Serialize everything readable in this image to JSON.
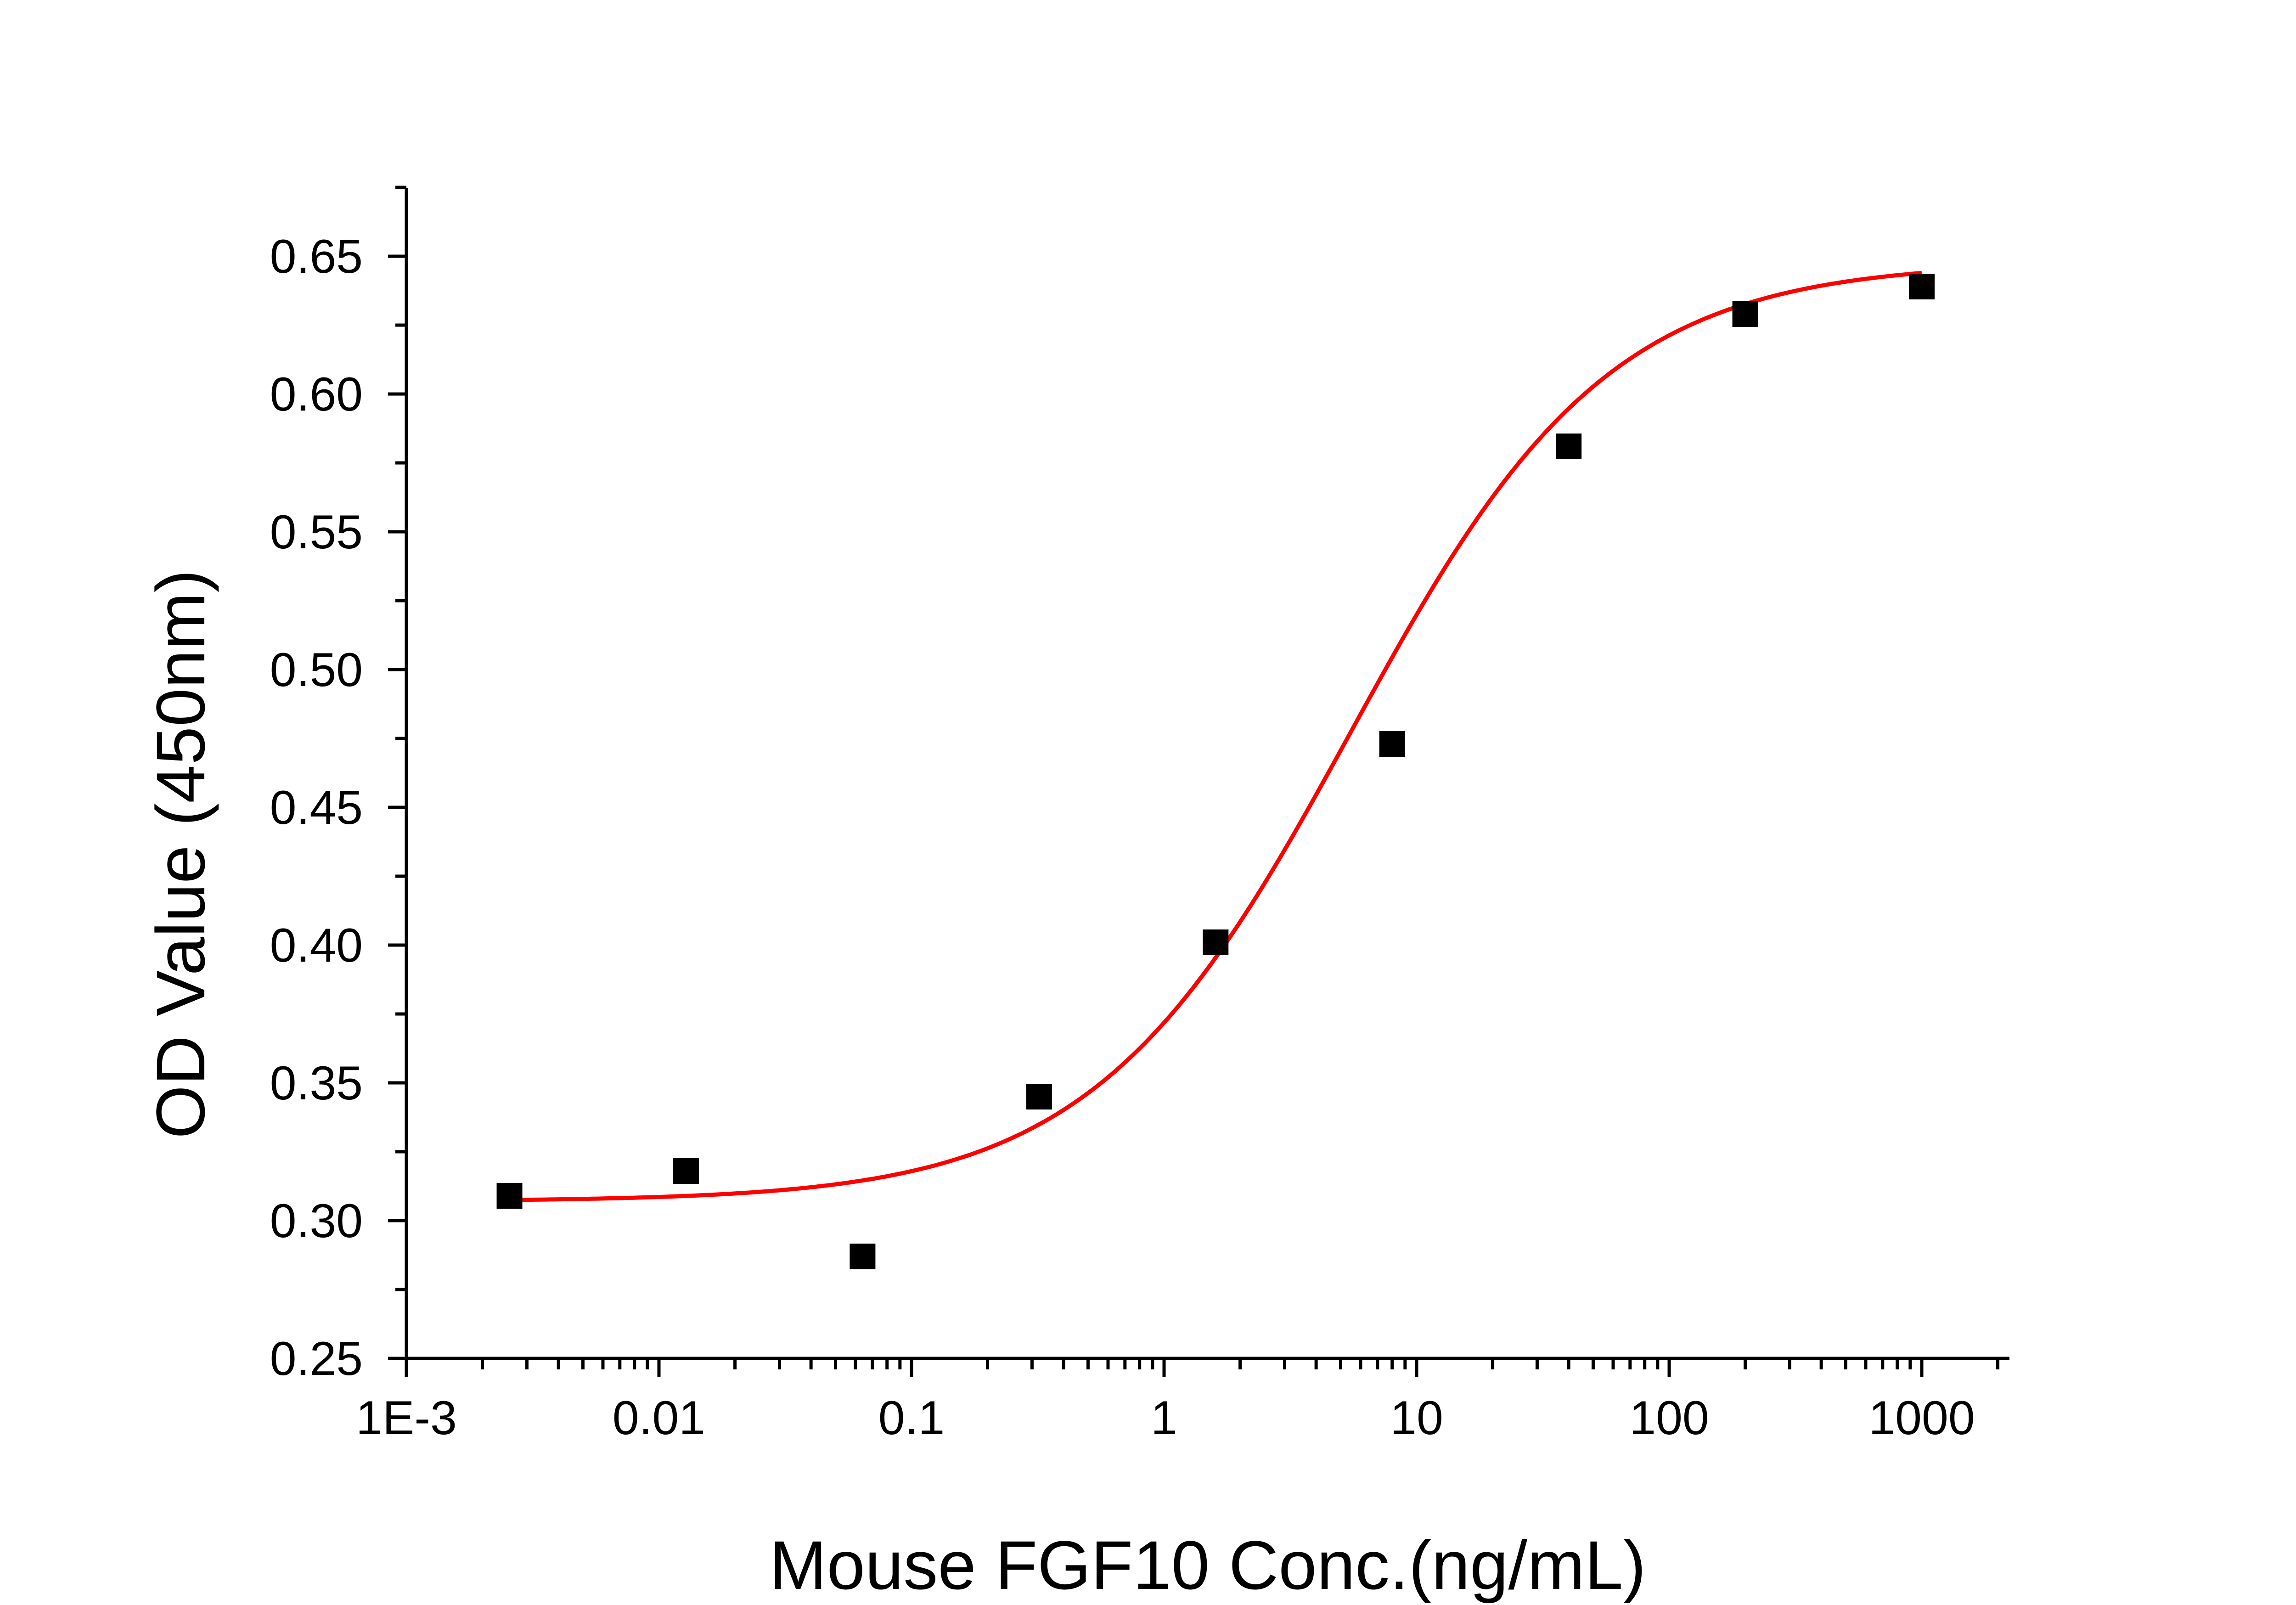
{
  "chart_data": {
    "type": "scatter",
    "title": "",
    "xlabel": "Mouse FGF10 Conc.(ng/mL)",
    "ylabel": "OD Value (450nm)",
    "x_scale": "log",
    "xlim": [
      0.001,
      3000
    ],
    "ylim": [
      0.25,
      0.675
    ],
    "x_ticks": [
      {
        "value": 0.001,
        "label": "1E-3"
      },
      {
        "value": 0.01,
        "label": "0.01"
      },
      {
        "value": 0.1,
        "label": "0.1"
      },
      {
        "value": 1,
        "label": "1"
      },
      {
        "value": 10,
        "label": "10"
      },
      {
        "value": 100,
        "label": "100"
      },
      {
        "value": 1000,
        "label": "1000"
      }
    ],
    "y_ticks": [
      {
        "value": 0.25,
        "label": "0.25"
      },
      {
        "value": 0.3,
        "label": "0.30"
      },
      {
        "value": 0.35,
        "label": "0.35"
      },
      {
        "value": 0.4,
        "label": "0.40"
      },
      {
        "value": 0.45,
        "label": "0.45"
      },
      {
        "value": 0.5,
        "label": "0.50"
      },
      {
        "value": 0.55,
        "label": "0.55"
      },
      {
        "value": 0.6,
        "label": "0.60"
      },
      {
        "value": 0.65,
        "label": "0.65"
      }
    ],
    "grid": false,
    "series": [
      {
        "kind": "points",
        "marker": "square",
        "color": "#000000",
        "x": [
          0.00256,
          0.0128,
          0.064,
          0.32,
          1.6,
          8,
          40,
          200,
          1000
        ],
        "y": [
          0.309,
          0.318,
          0.287,
          0.345,
          0.401,
          0.473,
          0.581,
          0.629,
          0.639
        ]
      },
      {
        "kind": "fit-curve",
        "model": "4PL",
        "color": "#ff0000",
        "bottom": 0.307,
        "top": 0.648,
        "ec50": 5.5,
        "hill": 0.85,
        "x_range": [
          0.00256,
          1000
        ]
      }
    ]
  }
}
